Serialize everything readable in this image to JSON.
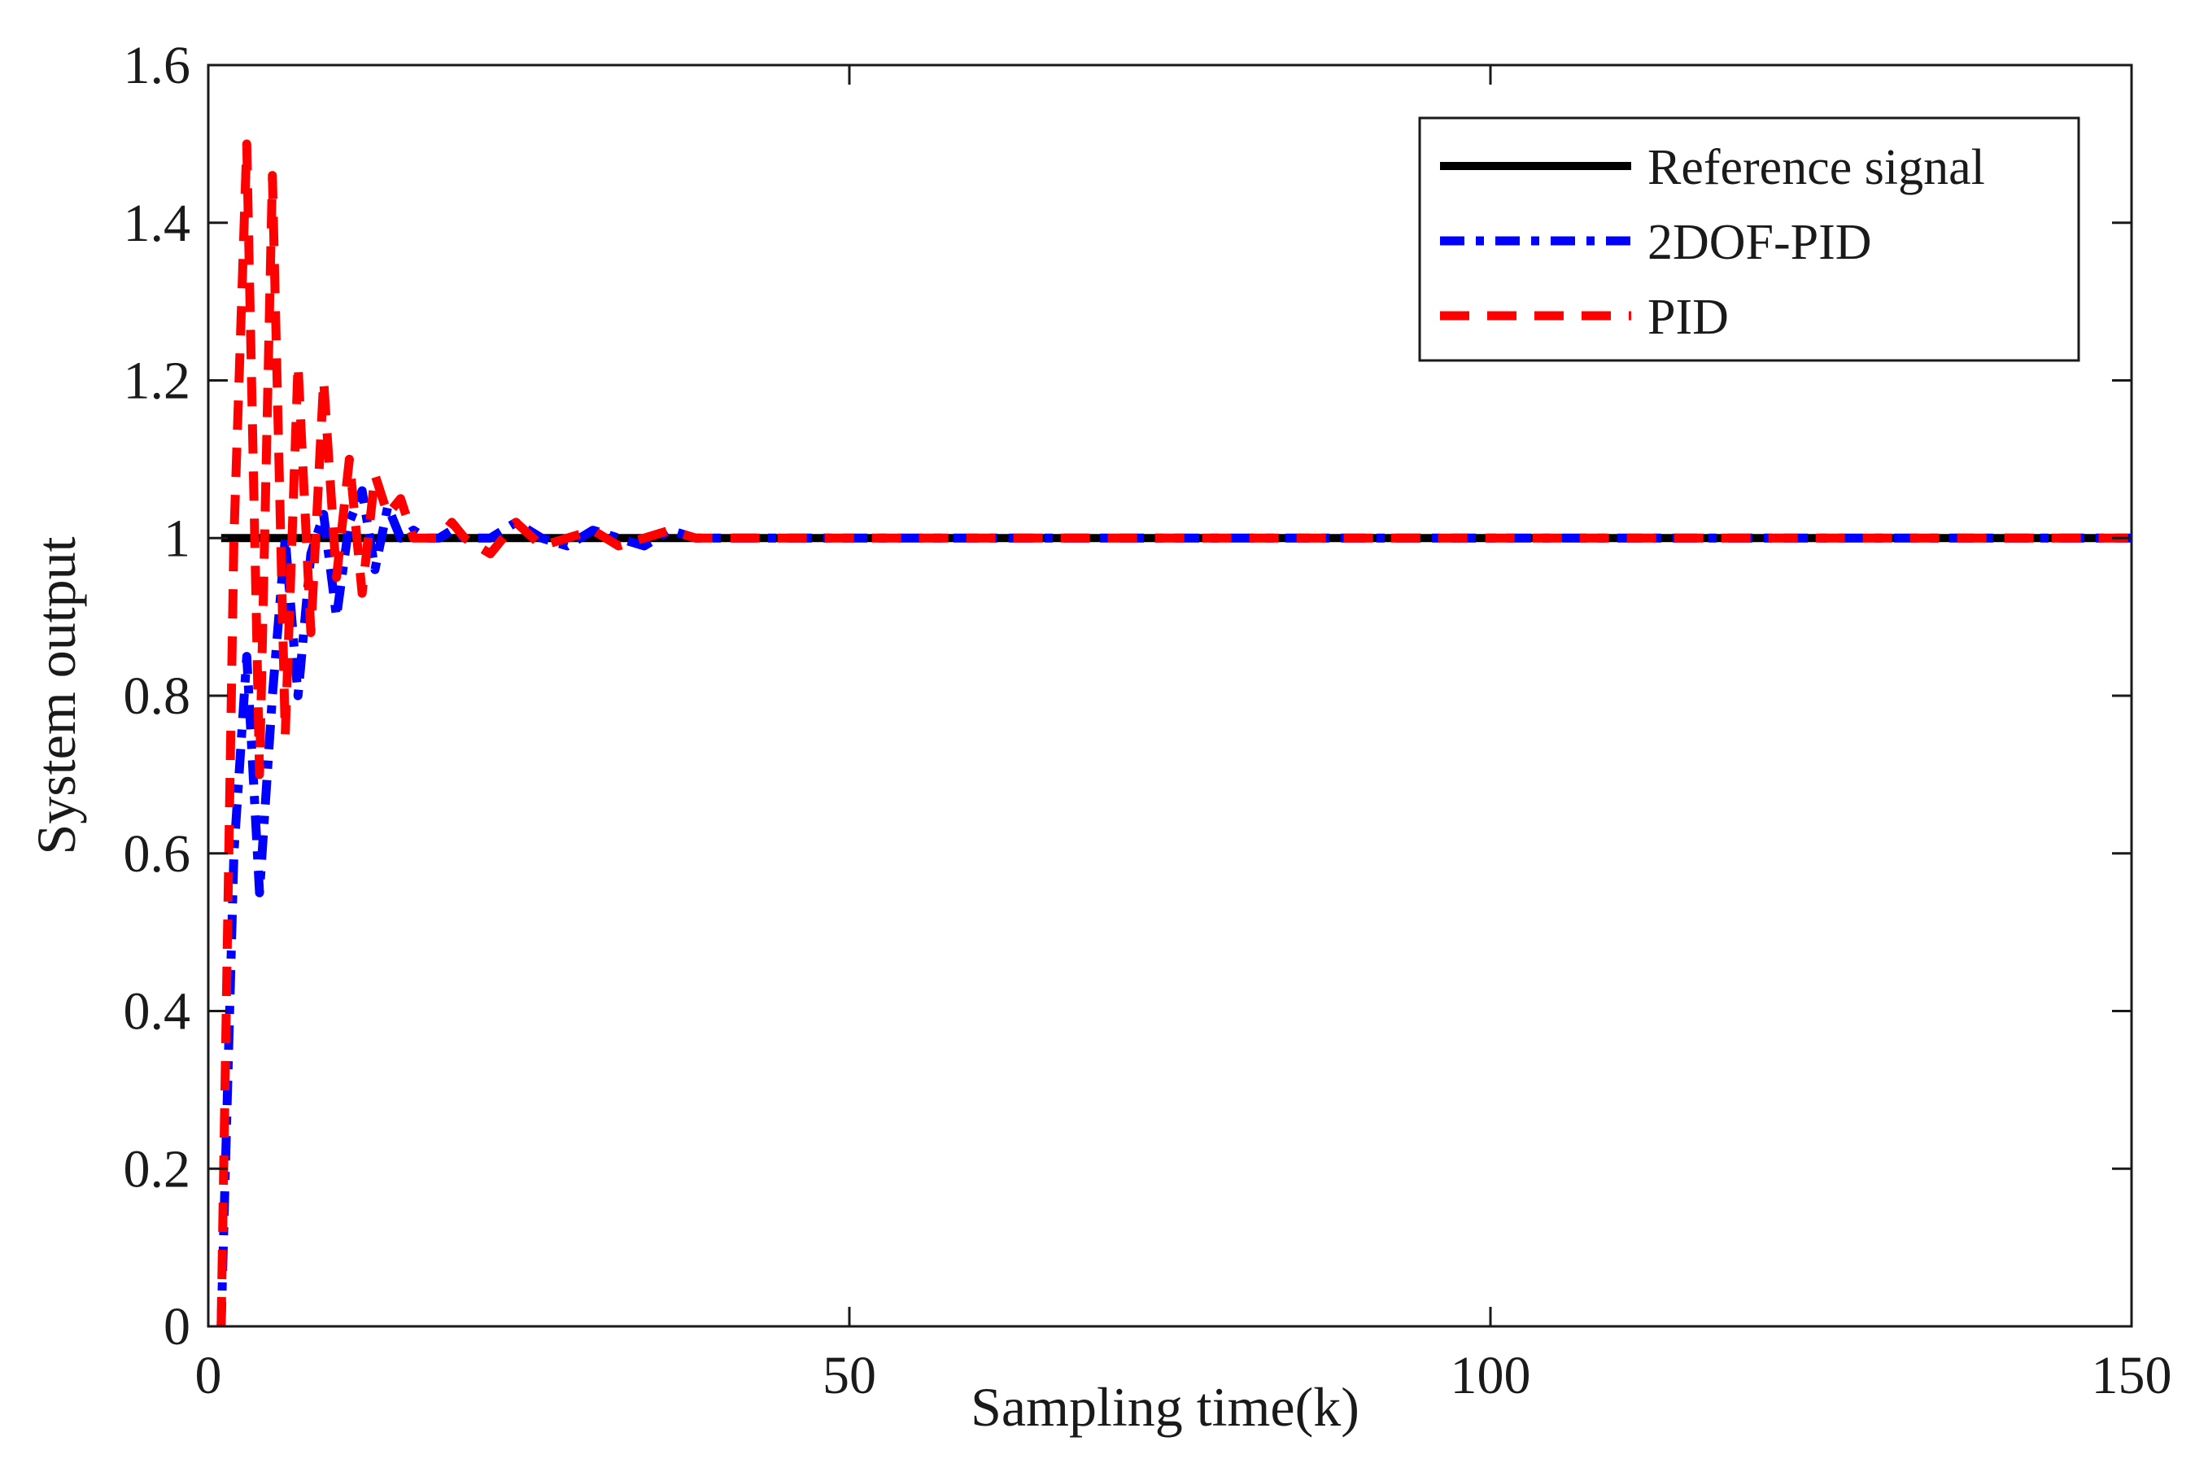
{
  "chart_data": {
    "type": "line",
    "title": "",
    "xlabel": "Sampling time(k)",
    "ylabel": "System output",
    "xlim": [
      0,
      150
    ],
    "ylim": [
      0,
      1.6
    ],
    "xticks": [
      0,
      50,
      100,
      150
    ],
    "xtick_labels": [
      "0",
      "50",
      "100",
      "150"
    ],
    "yticks": [
      0,
      0.2,
      0.4,
      0.6,
      0.8,
      1.0,
      1.2,
      1.4,
      1.6
    ],
    "ytick_labels": [
      "0",
      "0.2",
      "0.4",
      "0.6",
      "0.8",
      "1",
      "1.2",
      "1.4",
      "1.6"
    ],
    "grid": false,
    "legend_position": "top-right",
    "series": [
      {
        "name": "Reference signal",
        "color": "#000000",
        "style": "solid",
        "x": [
          1,
          150
        ],
        "y": [
          1,
          1
        ]
      },
      {
        "name": "2DOF-PID",
        "color": "#0000ff",
        "style": "dashdot",
        "x": [
          1,
          2,
          3,
          4,
          5,
          6,
          7,
          8,
          9,
          10,
          11,
          12,
          13,
          14,
          15,
          16,
          17,
          18,
          19,
          20,
          22,
          24,
          26,
          28,
          30,
          32,
          34,
          36,
          38,
          40,
          45,
          50,
          55,
          60,
          65,
          70,
          75,
          80,
          85,
          90,
          95,
          100,
          105,
          110,
          115,
          120,
          125,
          130,
          135,
          140,
          145,
          150
        ],
        "y": [
          0,
          0.6,
          0.85,
          0.55,
          0.8,
          1.0,
          0.8,
          0.98,
          1.03,
          0.9,
          1.02,
          1.06,
          0.96,
          1.04,
          1.0,
          1.01,
          1.0,
          1.0,
          1.01,
          1.0,
          1.0,
          1.02,
          1.0,
          0.99,
          1.01,
          1.0,
          0.99,
          1.01,
          1.0,
          1.0,
          1.0,
          1.0,
          1.0,
          1.0,
          1.0,
          1.0,
          1.0,
          1.0,
          1.0,
          1.0,
          1.0,
          1.0,
          1.0,
          1.0,
          1.0,
          1.0,
          1.0,
          1.0,
          1.0,
          1.0,
          1.0,
          1.0
        ]
      },
      {
        "name": "PID",
        "color": "#ff0000",
        "style": "dashed",
        "x": [
          1,
          2,
          3,
          4,
          5,
          6,
          7,
          8,
          9,
          10,
          11,
          12,
          13,
          14,
          15,
          16,
          17,
          18,
          19,
          20,
          22,
          24,
          26,
          28,
          30,
          32,
          34,
          36,
          38,
          40,
          45,
          50,
          55,
          60,
          65,
          70,
          75,
          80,
          85,
          90,
          95,
          100,
          105,
          110,
          115,
          120,
          125,
          130,
          135,
          140,
          145,
          150
        ],
        "y": [
          0,
          1.0,
          1.5,
          0.7,
          1.46,
          0.75,
          1.22,
          0.88,
          1.2,
          0.95,
          1.1,
          0.93,
          1.08,
          1.03,
          1.05,
          1.0,
          1.0,
          1.0,
          1.02,
          1.0,
          0.98,
          1.02,
          0.99,
          1.0,
          1.01,
          0.99,
          1.0,
          1.01,
          1.0,
          1.0,
          1.0,
          1.0,
          1.0,
          1.0,
          1.0,
          1.0,
          1.0,
          1.0,
          1.0,
          1.0,
          1.0,
          1.0,
          1.0,
          1.0,
          1.0,
          1.0,
          1.0,
          1.0,
          1.0,
          1.0,
          1.0,
          1.0
        ]
      }
    ]
  }
}
